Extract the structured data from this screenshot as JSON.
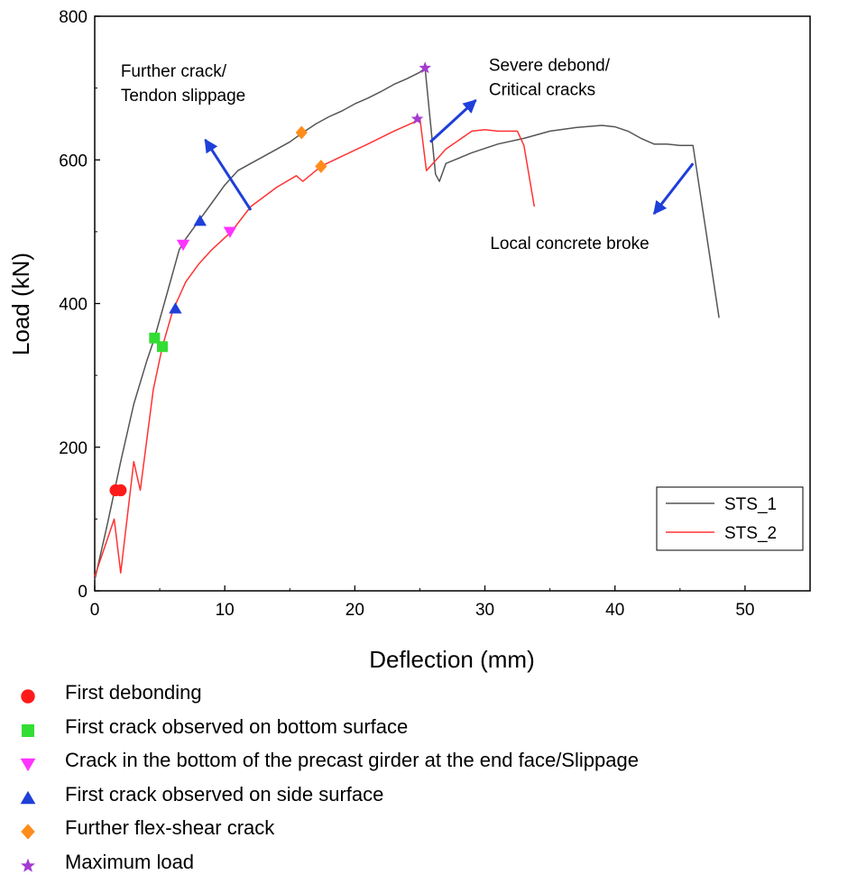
{
  "chart_data": {
    "type": "line",
    "xlabel": "Deflection (mm)",
    "ylabel": "Load (kN)",
    "xlim": [
      0,
      55
    ],
    "ylim": [
      0,
      800
    ],
    "xticks": [
      0,
      10,
      20,
      30,
      40,
      50
    ],
    "yticks": [
      0,
      200,
      400,
      600,
      800
    ],
    "grid": false,
    "legend_position": "lower-right",
    "series": [
      {
        "name": "STS_1",
        "color": "#555555",
        "points": [
          [
            0,
            15
          ],
          [
            1,
            95
          ],
          [
            2,
            180
          ],
          [
            3,
            260
          ],
          [
            4,
            320
          ],
          [
            4.6,
            352
          ],
          [
            5.5,
            410
          ],
          [
            6.5,
            475
          ],
          [
            7,
            490
          ],
          [
            8,
            515
          ],
          [
            9,
            540
          ],
          [
            10,
            565
          ],
          [
            11,
            585
          ],
          [
            12,
            595
          ],
          [
            13,
            605
          ],
          [
            14,
            615
          ],
          [
            15,
            625
          ],
          [
            16,
            638
          ],
          [
            17,
            650
          ],
          [
            18,
            660
          ],
          [
            19,
            668
          ],
          [
            20,
            678
          ],
          [
            21,
            686
          ],
          [
            22,
            695
          ],
          [
            23,
            705
          ],
          [
            24,
            713
          ],
          [
            25,
            722
          ],
          [
            25.4,
            728
          ],
          [
            26.2,
            580
          ],
          [
            26.5,
            570
          ],
          [
            27,
            595
          ],
          [
            29,
            610
          ],
          [
            31,
            622
          ],
          [
            33,
            630
          ],
          [
            35,
            640
          ],
          [
            37,
            645
          ],
          [
            39,
            648
          ],
          [
            40,
            646
          ],
          [
            41,
            640
          ],
          [
            42,
            630
          ],
          [
            43,
            622
          ],
          [
            44,
            622
          ],
          [
            45,
            620
          ],
          [
            46,
            620
          ],
          [
            47,
            500
          ],
          [
            48,
            380
          ]
        ]
      },
      {
        "name": "STS_2",
        "color": "#ff3333",
        "points": [
          [
            0,
            20
          ],
          [
            1.5,
            100
          ],
          [
            2,
            25
          ],
          [
            3,
            180
          ],
          [
            3.5,
            140
          ],
          [
            4.5,
            280
          ],
          [
            5.2,
            340
          ],
          [
            6,
            390
          ],
          [
            7,
            430
          ],
          [
            8,
            455
          ],
          [
            9,
            475
          ],
          [
            10.5,
            500
          ],
          [
            12,
            535
          ],
          [
            14,
            562
          ],
          [
            15.5,
            578
          ],
          [
            16,
            570
          ],
          [
            17,
            585
          ],
          [
            17.5,
            592
          ],
          [
            19,
            605
          ],
          [
            21,
            622
          ],
          [
            23,
            640
          ],
          [
            24.5,
            652
          ],
          [
            25,
            658
          ],
          [
            25.5,
            585
          ],
          [
            27,
            615
          ],
          [
            29,
            640
          ],
          [
            30,
            642
          ],
          [
            31,
            640
          ],
          [
            32.5,
            640
          ],
          [
            33,
            620
          ],
          [
            33.8,
            535
          ]
        ]
      }
    ],
    "markers": [
      {
        "type": "first_debonding",
        "label": "First debonding",
        "symbol": "circle",
        "color": "#ff1a1a",
        "points": [
          [
            1.6,
            140
          ],
          [
            2.0,
            140
          ]
        ]
      },
      {
        "type": "first_crack_bottom",
        "label": "First crack observed on bottom surface",
        "symbol": "square",
        "color": "#33dd33",
        "points": [
          [
            4.6,
            352
          ],
          [
            5.2,
            340
          ]
        ]
      },
      {
        "type": "crack_precast_end_face",
        "label": "Crack in the bottom of the precast girder at the end face/Slippage",
        "symbol": "triangle-down",
        "color": "#ff33ff",
        "points": [
          [
            6.8,
            482
          ],
          [
            10.4,
            500
          ]
        ]
      },
      {
        "type": "first_crack_side",
        "label": "First crack observed on side surface",
        "symbol": "triangle-up",
        "color": "#1f3fd9",
        "points": [
          [
            6.2,
            393
          ],
          [
            8.1,
            515
          ]
        ]
      },
      {
        "type": "flex_shear_crack",
        "label": "Further flex-shear crack",
        "symbol": "diamond",
        "color": "#ff8c1a",
        "points": [
          [
            15.9,
            638
          ],
          [
            17.4,
            591
          ]
        ]
      },
      {
        "type": "maximum_load",
        "label": "Maximum load",
        "symbol": "star",
        "color": "#a33ad1",
        "points": [
          [
            25.4,
            728
          ],
          [
            24.8,
            657
          ]
        ]
      }
    ],
    "annotations": [
      {
        "lines": [
          "Further crack/",
          "Tendon slippage"
        ],
        "text_at": [
          2.0,
          716
        ],
        "text_at_line2": [
          2.0,
          682
        ],
        "arrow_from": [
          12.0,
          530
        ],
        "arrow_to": [
          8.5,
          628
        ]
      },
      {
        "lines": [
          "Severe debond/",
          "Critical cracks"
        ],
        "text_at": [
          30.3,
          724
        ],
        "text_at_line2": [
          30.3,
          690
        ],
        "arrow_from": [
          25.8,
          625
        ],
        "arrow_to": [
          29.3,
          683
        ]
      },
      {
        "lines": [
          "Local concrete broke"
        ],
        "text_at": [
          30.4,
          476
        ],
        "arrow_from": [
          46.0,
          595
        ],
        "arrow_to": [
          43.0,
          525
        ]
      }
    ]
  }
}
